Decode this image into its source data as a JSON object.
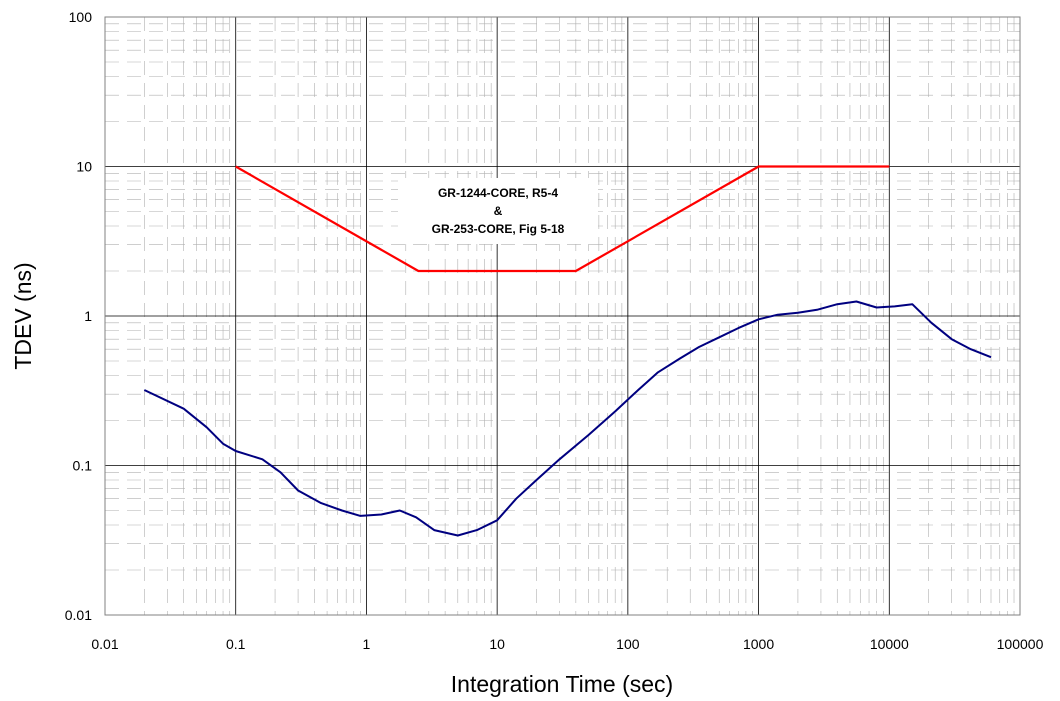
{
  "chart_data": {
    "type": "line",
    "xscale": "log",
    "yscale": "log",
    "xlim": [
      0.01,
      100000
    ],
    "ylim": [
      0.01,
      100
    ],
    "xlabel": "Integration Time (sec)",
    "ylabel": "TDEV (ns)",
    "x_ticks": [
      "0.01",
      "0.1",
      "1",
      "10",
      "100",
      "1000",
      "10000",
      "100000"
    ],
    "y_ticks": [
      "0.01",
      "0.1",
      "1",
      "10",
      "100"
    ],
    "grid": true,
    "annotation": [
      "GR-1244-CORE, R5-4",
      "&",
      "GR-253-CORE, Fig 5-18"
    ],
    "series": [
      {
        "color": "#ff0000",
        "x": [
          0.1,
          2.5,
          40,
          1000,
          10000
        ],
        "y": [
          10,
          2,
          2,
          10,
          10
        ]
      },
      {
        "color": "#000080",
        "x": [
          0.02,
          0.04,
          0.06,
          0.08,
          0.1,
          0.16,
          0.22,
          0.3,
          0.45,
          0.65,
          0.9,
          1.3,
          1.8,
          2.4,
          3.3,
          5,
          7,
          10,
          14,
          20,
          30,
          50,
          80,
          120,
          170,
          250,
          350,
          500,
          700,
          1000,
          1400,
          2000,
          2800,
          4000,
          5600,
          8000,
          11000,
          15000,
          21000,
          30000,
          42000,
          60000
        ],
        "y": [
          0.32,
          0.24,
          0.18,
          0.14,
          0.125,
          0.11,
          0.09,
          0.068,
          0.056,
          0.05,
          0.046,
          0.047,
          0.05,
          0.045,
          0.037,
          0.034,
          0.037,
          0.043,
          0.06,
          0.08,
          0.11,
          0.16,
          0.23,
          0.32,
          0.42,
          0.52,
          0.62,
          0.72,
          0.83,
          0.95,
          1.02,
          1.05,
          1.1,
          1.2,
          1.25,
          1.14,
          1.16,
          1.2,
          0.9,
          0.7,
          0.6,
          0.53
        ]
      }
    ]
  }
}
